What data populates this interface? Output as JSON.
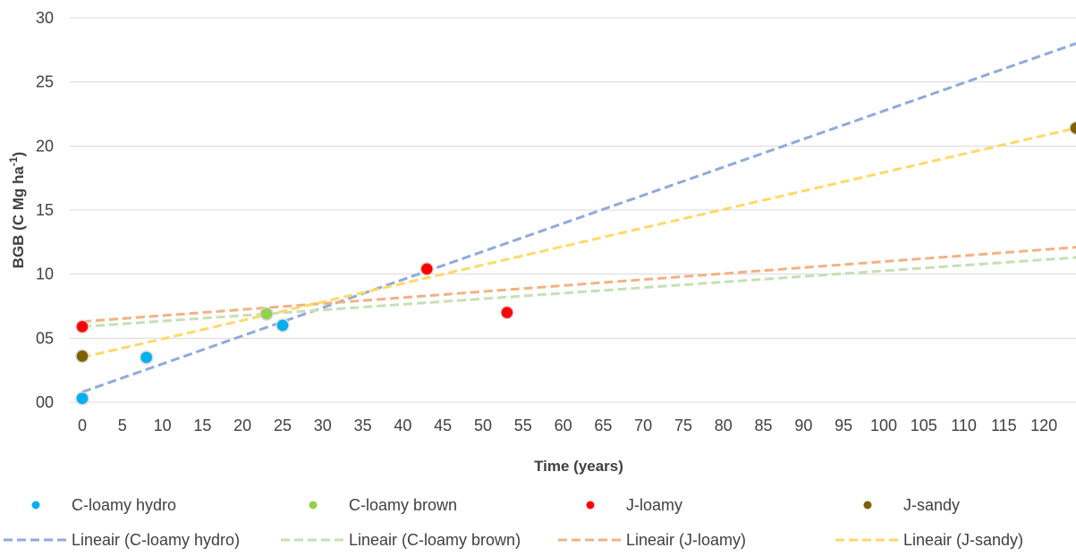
{
  "chart_data": {
    "type": "scatter",
    "title": "",
    "xlabel": "Time (years)",
    "ylabel": {
      "main": "BGB (C Mg ha",
      "sup": "-1",
      "close": ")"
    },
    "xlim": [
      0,
      124
    ],
    "ylim": [
      0,
      30
    ],
    "grid": "horizontal",
    "legend_position": "bottom",
    "x_ticks": [
      0,
      5,
      10,
      15,
      20,
      25,
      30,
      35,
      40,
      45,
      50,
      55,
      60,
      65,
      70,
      75,
      80,
      85,
      90,
      95,
      100,
      105,
      110,
      115,
      120
    ],
    "y_ticks": [
      {
        "value": 0,
        "label": "00"
      },
      {
        "value": 5,
        "label": "05"
      },
      {
        "value": 10,
        "label": "10"
      },
      {
        "value": 15,
        "label": "15"
      },
      {
        "value": 20,
        "label": "20"
      },
      {
        "value": 25,
        "label": "25"
      },
      {
        "value": 30,
        "label": "30"
      }
    ],
    "series": [
      {
        "name": "C-loamy hydro",
        "color": "#00b0f0",
        "points": [
          {
            "x": 0,
            "y": 0.3
          },
          {
            "x": 8,
            "y": 3.5
          },
          {
            "x": 25,
            "y": 6.0
          }
        ]
      },
      {
        "name": "C-loamy brown",
        "color": "#92d050",
        "points": [
          {
            "x": 23,
            "y": 6.9
          }
        ]
      },
      {
        "name": "J-loamy",
        "color": "#ff0000",
        "points": [
          {
            "x": 0,
            "y": 5.9
          },
          {
            "x": 43,
            "y": 10.4
          },
          {
            "x": 53,
            "y": 7.0
          }
        ]
      },
      {
        "name": "J-sandy",
        "color": "#7f6000",
        "points": [
          {
            "x": 0,
            "y": 3.6
          },
          {
            "x": 124,
            "y": 21.4
          }
        ]
      }
    ],
    "trendlines": [
      {
        "name": "Lineair (C-loamy hydro)",
        "color": "#8faadc",
        "y_at_0": 0.8,
        "y_at_124": 28.0
      },
      {
        "name": "Lineair (C-loamy brown)",
        "color": "#c5e0b4",
        "y_at_0": 5.9,
        "y_at_124": 11.3
      },
      {
        "name": "Lineair (J-loamy)",
        "color": "#f4b183",
        "y_at_0": 6.3,
        "y_at_124": 12.1
      },
      {
        "name": "Lineair (J-sandy)",
        "color": "#ffd966",
        "y_at_0": 3.5,
        "y_at_124": 21.4
      }
    ]
  }
}
